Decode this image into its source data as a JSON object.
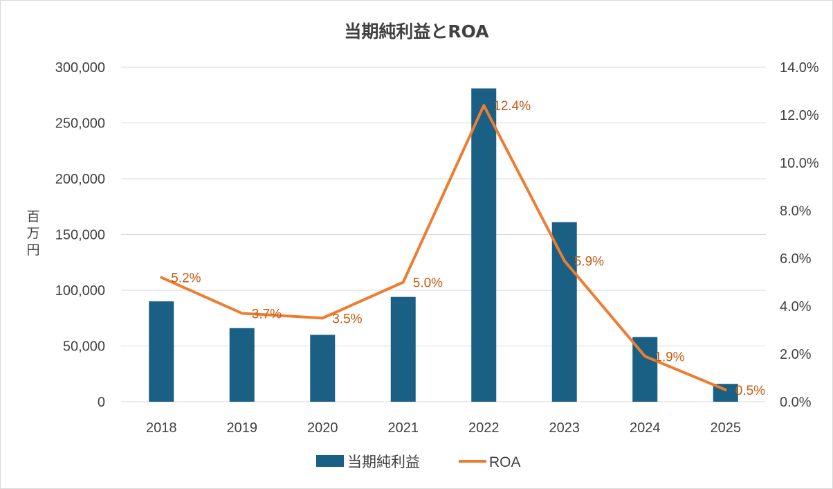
{
  "chart_data": {
    "type": "bar+line",
    "title": "当期純利益とROA",
    "ylabel": "百万円",
    "categories": [
      "2018",
      "2019",
      "2020",
      "2021",
      "2022",
      "2023",
      "2024",
      "2025"
    ],
    "series": [
      {
        "name": "当期純利益",
        "type": "bar",
        "axis": "left",
        "color": "#1a5f84",
        "values": [
          90000,
          66000,
          60000,
          94000,
          281000,
          161000,
          58000,
          16000
        ]
      },
      {
        "name": "ROA",
        "type": "line",
        "axis": "right",
        "color": "#ed7d31",
        "values": [
          5.2,
          3.7,
          3.5,
          5.0,
          12.4,
          5.9,
          1.9,
          0.5
        ],
        "labels": [
          "5.2%",
          "3.7%",
          "3.5%",
          "5.0%",
          "12.4%",
          "5.9%",
          "1.9%",
          "0.5%"
        ]
      }
    ],
    "y_left": {
      "min": 0,
      "max": 300000,
      "ticks": [
        "0",
        "50,000",
        "100,000",
        "150,000",
        "200,000",
        "250,000",
        "300,000"
      ]
    },
    "y_right": {
      "min": 0,
      "max": 14,
      "ticks": [
        "0.0%",
        "2.0%",
        "4.0%",
        "6.0%",
        "8.0%",
        "10.0%",
        "12.0%",
        "14.0%"
      ]
    },
    "grid": true,
    "legend": "bottom"
  }
}
